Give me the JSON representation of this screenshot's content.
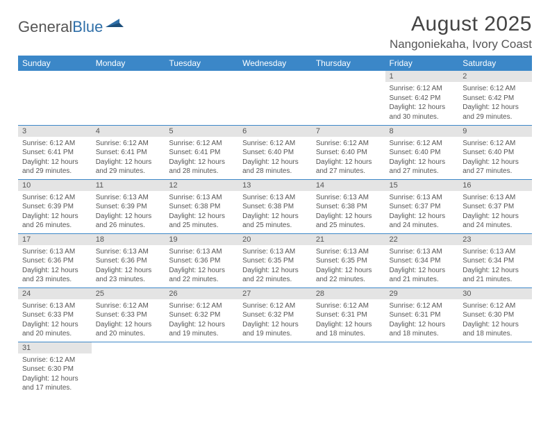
{
  "logo": {
    "part1": "General",
    "part2": "Blue"
  },
  "title": "August 2025",
  "location": "Nangoniekaha, Ivory Coast",
  "weekdays": [
    "Sunday",
    "Monday",
    "Tuesday",
    "Wednesday",
    "Thursday",
    "Friday",
    "Saturday"
  ],
  "colors": {
    "header_bg": "#3b87c8",
    "header_text": "#ffffff",
    "daynum_bg": "#e4e4e4",
    "text": "#555555",
    "rule": "#3b87c8"
  },
  "weeks": [
    [
      null,
      null,
      null,
      null,
      null,
      {
        "n": "1",
        "sr": "Sunrise: 6:12 AM",
        "ss": "Sunset: 6:42 PM",
        "dl": "Daylight: 12 hours and 30 minutes."
      },
      {
        "n": "2",
        "sr": "Sunrise: 6:12 AM",
        "ss": "Sunset: 6:42 PM",
        "dl": "Daylight: 12 hours and 29 minutes."
      }
    ],
    [
      {
        "n": "3",
        "sr": "Sunrise: 6:12 AM",
        "ss": "Sunset: 6:41 PM",
        "dl": "Daylight: 12 hours and 29 minutes."
      },
      {
        "n": "4",
        "sr": "Sunrise: 6:12 AM",
        "ss": "Sunset: 6:41 PM",
        "dl": "Daylight: 12 hours and 29 minutes."
      },
      {
        "n": "5",
        "sr": "Sunrise: 6:12 AM",
        "ss": "Sunset: 6:41 PM",
        "dl": "Daylight: 12 hours and 28 minutes."
      },
      {
        "n": "6",
        "sr": "Sunrise: 6:12 AM",
        "ss": "Sunset: 6:40 PM",
        "dl": "Daylight: 12 hours and 28 minutes."
      },
      {
        "n": "7",
        "sr": "Sunrise: 6:12 AM",
        "ss": "Sunset: 6:40 PM",
        "dl": "Daylight: 12 hours and 27 minutes."
      },
      {
        "n": "8",
        "sr": "Sunrise: 6:12 AM",
        "ss": "Sunset: 6:40 PM",
        "dl": "Daylight: 12 hours and 27 minutes."
      },
      {
        "n": "9",
        "sr": "Sunrise: 6:12 AM",
        "ss": "Sunset: 6:40 PM",
        "dl": "Daylight: 12 hours and 27 minutes."
      }
    ],
    [
      {
        "n": "10",
        "sr": "Sunrise: 6:12 AM",
        "ss": "Sunset: 6:39 PM",
        "dl": "Daylight: 12 hours and 26 minutes."
      },
      {
        "n": "11",
        "sr": "Sunrise: 6:13 AM",
        "ss": "Sunset: 6:39 PM",
        "dl": "Daylight: 12 hours and 26 minutes."
      },
      {
        "n": "12",
        "sr": "Sunrise: 6:13 AM",
        "ss": "Sunset: 6:38 PM",
        "dl": "Daylight: 12 hours and 25 minutes."
      },
      {
        "n": "13",
        "sr": "Sunrise: 6:13 AM",
        "ss": "Sunset: 6:38 PM",
        "dl": "Daylight: 12 hours and 25 minutes."
      },
      {
        "n": "14",
        "sr": "Sunrise: 6:13 AM",
        "ss": "Sunset: 6:38 PM",
        "dl": "Daylight: 12 hours and 25 minutes."
      },
      {
        "n": "15",
        "sr": "Sunrise: 6:13 AM",
        "ss": "Sunset: 6:37 PM",
        "dl": "Daylight: 12 hours and 24 minutes."
      },
      {
        "n": "16",
        "sr": "Sunrise: 6:13 AM",
        "ss": "Sunset: 6:37 PM",
        "dl": "Daylight: 12 hours and 24 minutes."
      }
    ],
    [
      {
        "n": "17",
        "sr": "Sunrise: 6:13 AM",
        "ss": "Sunset: 6:36 PM",
        "dl": "Daylight: 12 hours and 23 minutes."
      },
      {
        "n": "18",
        "sr": "Sunrise: 6:13 AM",
        "ss": "Sunset: 6:36 PM",
        "dl": "Daylight: 12 hours and 23 minutes."
      },
      {
        "n": "19",
        "sr": "Sunrise: 6:13 AM",
        "ss": "Sunset: 6:36 PM",
        "dl": "Daylight: 12 hours and 22 minutes."
      },
      {
        "n": "20",
        "sr": "Sunrise: 6:13 AM",
        "ss": "Sunset: 6:35 PM",
        "dl": "Daylight: 12 hours and 22 minutes."
      },
      {
        "n": "21",
        "sr": "Sunrise: 6:13 AM",
        "ss": "Sunset: 6:35 PM",
        "dl": "Daylight: 12 hours and 22 minutes."
      },
      {
        "n": "22",
        "sr": "Sunrise: 6:13 AM",
        "ss": "Sunset: 6:34 PM",
        "dl": "Daylight: 12 hours and 21 minutes."
      },
      {
        "n": "23",
        "sr": "Sunrise: 6:13 AM",
        "ss": "Sunset: 6:34 PM",
        "dl": "Daylight: 12 hours and 21 minutes."
      }
    ],
    [
      {
        "n": "24",
        "sr": "Sunrise: 6:13 AM",
        "ss": "Sunset: 6:33 PM",
        "dl": "Daylight: 12 hours and 20 minutes."
      },
      {
        "n": "25",
        "sr": "Sunrise: 6:12 AM",
        "ss": "Sunset: 6:33 PM",
        "dl": "Daylight: 12 hours and 20 minutes."
      },
      {
        "n": "26",
        "sr": "Sunrise: 6:12 AM",
        "ss": "Sunset: 6:32 PM",
        "dl": "Daylight: 12 hours and 19 minutes."
      },
      {
        "n": "27",
        "sr": "Sunrise: 6:12 AM",
        "ss": "Sunset: 6:32 PM",
        "dl": "Daylight: 12 hours and 19 minutes."
      },
      {
        "n": "28",
        "sr": "Sunrise: 6:12 AM",
        "ss": "Sunset: 6:31 PM",
        "dl": "Daylight: 12 hours and 18 minutes."
      },
      {
        "n": "29",
        "sr": "Sunrise: 6:12 AM",
        "ss": "Sunset: 6:31 PM",
        "dl": "Daylight: 12 hours and 18 minutes."
      },
      {
        "n": "30",
        "sr": "Sunrise: 6:12 AM",
        "ss": "Sunset: 6:30 PM",
        "dl": "Daylight: 12 hours and 18 minutes."
      }
    ],
    [
      {
        "n": "31",
        "sr": "Sunrise: 6:12 AM",
        "ss": "Sunset: 6:30 PM",
        "dl": "Daylight: 12 hours and 17 minutes."
      },
      null,
      null,
      null,
      null,
      null,
      null
    ]
  ]
}
